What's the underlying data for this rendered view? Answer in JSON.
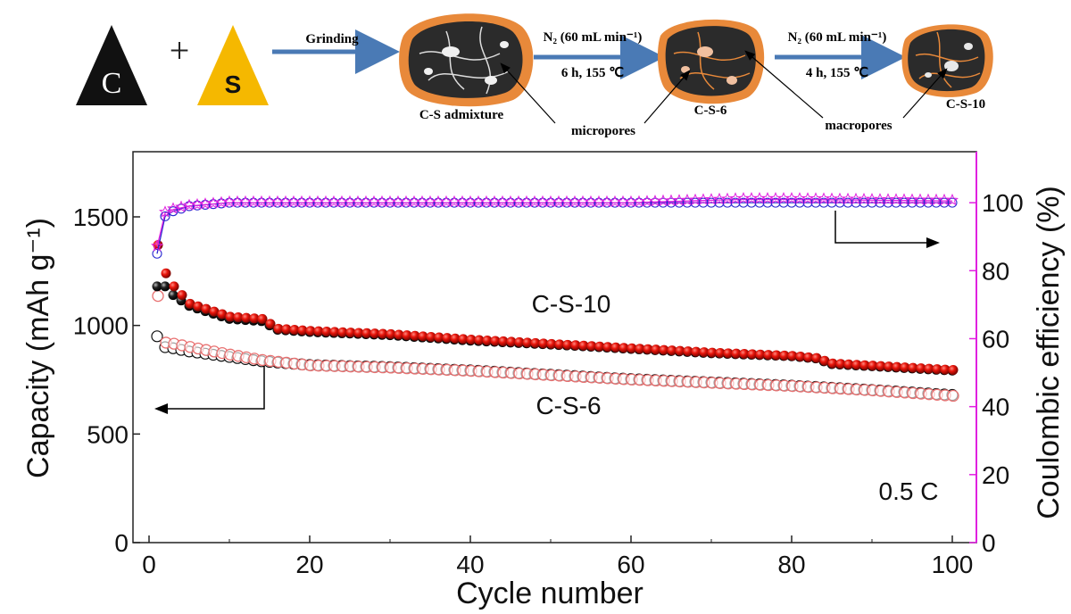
{
  "schematic": {
    "carbon_letter": "C",
    "plus": "+",
    "sulfur_letter": "S",
    "step1_label": "Grinding",
    "step2_line1": "N₂ (60 mL min⁻¹)",
    "step2_line2": "6 h, 155 ℃",
    "step3_line1": "N₂ (60 mL min⁻¹)",
    "step3_line2": "4 h, 155 ℃",
    "particle1_label": "C-S admixture",
    "particle2_label": "C-S-6",
    "particle3_label": "C-S-10",
    "callout_micro": "micropores",
    "callout_macro": "macropores",
    "colors": {
      "carbon": "#111111",
      "sulfur": "#f5b800",
      "shell": "#e8893a",
      "arrow": "#4a7ab5"
    }
  },
  "chart_data": {
    "type": "scatter",
    "xlabel": "Cycle number",
    "ylabel_left": "Capacity (mAh g⁻¹)",
    "ylabel_right": "Coulombic efficiency (%)",
    "xlim": [
      -2,
      103
    ],
    "ylim_left": [
      0,
      1800
    ],
    "ylim_right": [
      0,
      115
    ],
    "x_ticks": [
      0,
      20,
      40,
      60,
      80,
      100
    ],
    "y_ticks_left": [
      0,
      500,
      1000,
      1500
    ],
    "y_ticks_right": [
      0,
      20,
      40,
      60,
      80,
      100
    ],
    "annotations": {
      "cs10": "C-S-10",
      "cs6": "C-S-6",
      "rate": "0.5 C"
    },
    "colors": {
      "red": "#e8140a",
      "pink_open": "#e87070",
      "black": "#111111",
      "magenta": "#e020e0",
      "blue": "#2a2ad0",
      "right_axis": "#e020e0"
    },
    "series": [
      {
        "role": "C-S-10 discharge (red filled)",
        "capacity_points": [
          [
            1,
            1370
          ],
          [
            2,
            1240
          ],
          [
            3,
            1180
          ],
          [
            5,
            1100
          ],
          [
            10,
            1040
          ],
          [
            14,
            1030
          ],
          [
            16,
            985
          ],
          [
            20,
            975
          ],
          [
            30,
            960
          ],
          [
            40,
            935
          ],
          [
            50,
            915
          ],
          [
            60,
            895
          ],
          [
            70,
            875
          ],
          [
            80,
            860
          ],
          [
            83,
            850
          ],
          [
            85,
            825
          ],
          [
            90,
            815
          ],
          [
            100,
            795
          ]
        ]
      },
      {
        "role": "C-S-10 charge (black filled)",
        "capacity_points": [
          [
            1,
            1180
          ],
          [
            2,
            1180
          ],
          [
            3,
            1140
          ],
          [
            5,
            1090
          ],
          [
            10,
            1030
          ],
          [
            14,
            1020
          ],
          [
            16,
            980
          ],
          [
            20,
            970
          ],
          [
            30,
            955
          ],
          [
            40,
            930
          ],
          [
            50,
            912
          ],
          [
            60,
            892
          ],
          [
            70,
            872
          ],
          [
            80,
            858
          ],
          [
            83,
            848
          ],
          [
            85,
            822
          ],
          [
            90,
            812
          ],
          [
            100,
            792
          ]
        ]
      },
      {
        "role": "C-S-6 discharge (open red)",
        "capacity_points": [
          [
            1,
            1140
          ],
          [
            2,
            925
          ],
          [
            3,
            920
          ],
          [
            5,
            905
          ],
          [
            10,
            870
          ],
          [
            14,
            845
          ],
          [
            20,
            820
          ],
          [
            30,
            810
          ],
          [
            40,
            795
          ],
          [
            50,
            775
          ],
          [
            60,
            755
          ],
          [
            70,
            740
          ],
          [
            80,
            725
          ],
          [
            90,
            705
          ],
          [
            100,
            680
          ]
        ]
      },
      {
        "role": "C-S-6 charge (open black)",
        "capacity_points": [
          [
            1,
            950
          ],
          [
            2,
            900
          ],
          [
            3,
            895
          ],
          [
            5,
            880
          ],
          [
            10,
            855
          ],
          [
            14,
            835
          ],
          [
            20,
            818
          ],
          [
            30,
            808
          ],
          [
            40,
            793
          ],
          [
            50,
            773
          ],
          [
            60,
            753
          ],
          [
            70,
            738
          ],
          [
            80,
            723
          ],
          [
            90,
            703
          ],
          [
            100,
            680
          ]
        ]
      },
      {
        "role": "C-S-10 efficiency (magenta stars)",
        "efficiency_points": [
          [
            1,
            87
          ],
          [
            2,
            97
          ],
          [
            3,
            98
          ],
          [
            5,
            99
          ],
          [
            10,
            100
          ],
          [
            20,
            100
          ],
          [
            40,
            100
          ],
          [
            60,
            100
          ],
          [
            74,
            101
          ],
          [
            80,
            101
          ],
          [
            100,
            100.5
          ]
        ]
      },
      {
        "role": "C-S-6 efficiency (open blue circles)",
        "efficiency_points": [
          [
            1,
            85
          ],
          [
            2,
            96
          ],
          [
            3,
            97.5
          ],
          [
            5,
            99
          ],
          [
            10,
            100
          ],
          [
            20,
            100
          ],
          [
            40,
            100
          ],
          [
            60,
            100
          ],
          [
            80,
            100
          ],
          [
            100,
            100
          ]
        ]
      }
    ]
  }
}
